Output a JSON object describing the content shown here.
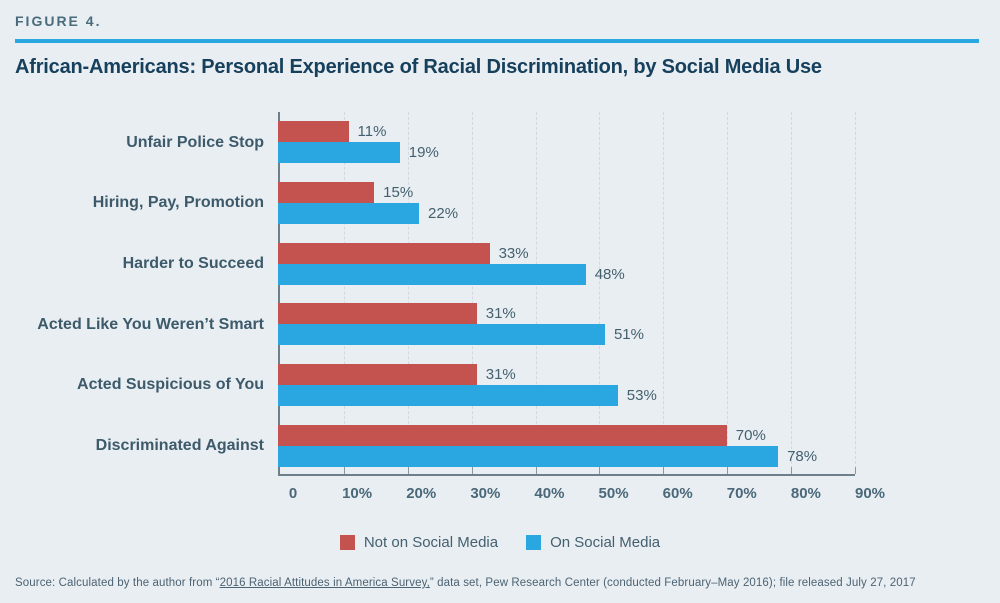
{
  "figure_label": "FIGURE 4.",
  "title": "African-Americans: Personal Experience of Racial Discrimination, by Social Media Use",
  "chart_data": {
    "type": "bar",
    "orientation": "horizontal",
    "title": "African-Americans: Personal Experience of Racial Discrimination, by Social Media Use",
    "categories": [
      "Unfair Police Stop",
      "Hiring, Pay, Promotion",
      "Harder to Succeed",
      "Acted Like You Weren’t Smart",
      "Acted Suspicious of You",
      "Discriminated Against"
    ],
    "series": [
      {
        "name": "Not on Social Media",
        "color": "#c4524f",
        "values": [
          11,
          15,
          33,
          31,
          31,
          70
        ]
      },
      {
        "name": "On Social Media",
        "color": "#2aa7e1",
        "values": [
          19,
          22,
          48,
          51,
          53,
          78
        ]
      }
    ],
    "value_suffix": "%",
    "xlabel": "",
    "ylabel": "",
    "xlim": [
      0,
      90
    ],
    "xticks": [
      "0",
      "10%",
      "20%",
      "30%",
      "40%",
      "50%",
      "60%",
      "70%",
      "80%",
      "90%"
    ],
    "grid": "dashed-vertical",
    "legend_position": "bottom-center"
  },
  "source": {
    "prefix": "Source: Calculated by the author from “",
    "link": "2016 Racial Attitudes in America Survey,",
    "suffix": "” data set, Pew Research Center (conducted February–May 2016); file released July 27, 2017"
  },
  "colors": {
    "background": "#e9eef2",
    "accent_rule": "#2aa7e1",
    "series_red": "#c4524f",
    "series_blue": "#2aa7e1",
    "title_text": "#17405c",
    "axis_line": "#6e7f8a",
    "gridline": "#d2d8dd",
    "label_text": "#3d5a6b"
  }
}
